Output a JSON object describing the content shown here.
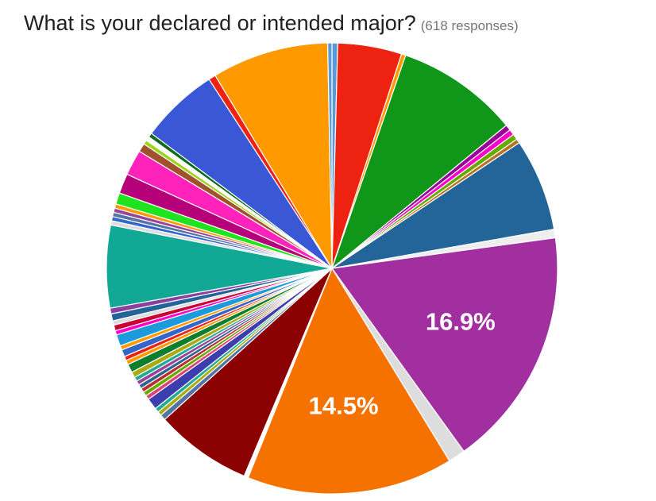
{
  "question": {
    "title": "What is your declared or intended major?",
    "responses_text": "(618 responses)"
  },
  "chart_data": {
    "type": "pie",
    "start_angle_deg": 0,
    "direction": "clockwise",
    "slices": [
      {
        "value": 0.4,
        "color": "#5b9bd5"
      },
      {
        "value": 4.5,
        "color": "#ee2211"
      },
      {
        "value": 0.3,
        "color": "#ff9900"
      },
      {
        "value": 8.6,
        "color": "#109618"
      },
      {
        "value": 0.4,
        "color": "#990099"
      },
      {
        "value": 0.4,
        "color": "#ff00cc"
      },
      {
        "value": 0.4,
        "color": "#66aa00"
      },
      {
        "value": 0.3,
        "color": "#b77322"
      },
      {
        "value": 6.5,
        "color": "#236598"
      },
      {
        "value": 0.6,
        "color": "#eeeeee"
      },
      {
        "value": 16.9,
        "color": "#a12f9f",
        "label": "16.9%"
      },
      {
        "value": 1.2,
        "color": "#dddddd"
      },
      {
        "value": 14.5,
        "color": "#f67200",
        "label": "14.5%"
      },
      {
        "value": 0.3,
        "color": "#ffffff"
      },
      {
        "value": 6.8,
        "color": "#8b0000"
      },
      {
        "value": 0.4,
        "color": "#5574a6"
      },
      {
        "value": 0.3,
        "color": "#aaaa11"
      },
      {
        "value": 0.3,
        "color": "#22aa99"
      },
      {
        "value": 0.8,
        "color": "#3b3eac"
      },
      {
        "value": 0.3,
        "color": "#dd4477"
      },
      {
        "value": 0.3,
        "color": "#66aa00"
      },
      {
        "value": 0.3,
        "color": "#b82e2e"
      },
      {
        "value": 0.3,
        "color": "#316395"
      },
      {
        "value": 0.3,
        "color": "#994499"
      },
      {
        "value": 0.3,
        "color": "#22aa99"
      },
      {
        "value": 0.4,
        "color": "#aaaa11"
      },
      {
        "value": 0.6,
        "color": "#0d7d2f"
      },
      {
        "value": 0.3,
        "color": "#ff9900"
      },
      {
        "value": 0.3,
        "color": "#ee2211"
      },
      {
        "value": 0.5,
        "color": "#3366cc"
      },
      {
        "value": 0.3,
        "color": "#ff9900"
      },
      {
        "value": 0.8,
        "color": "#1b9bdc"
      },
      {
        "value": 0.3,
        "color": "#ff00cc"
      },
      {
        "value": 0.4,
        "color": "#cc0033"
      },
      {
        "value": 0.3,
        "color": "#dddddd"
      },
      {
        "value": 0.5,
        "color": "#236598"
      },
      {
        "value": 0.4,
        "color": "#8b3fa0"
      },
      {
        "value": 5.8,
        "color": "#11a896"
      },
      {
        "value": 0.3,
        "color": "#dddddd"
      },
      {
        "value": 0.3,
        "color": "#3366cc"
      },
      {
        "value": 0.3,
        "color": "#5574a6"
      },
      {
        "value": 0.3,
        "color": "#994499"
      },
      {
        "value": 0.3,
        "color": "#ff9900"
      },
      {
        "value": 0.8,
        "color": "#1ee31e"
      },
      {
        "value": 1.4,
        "color": "#b5007a"
      },
      {
        "value": 1.8,
        "color": "#ff22bb"
      },
      {
        "value": 0.6,
        "color": "#a0522d"
      },
      {
        "value": 0.3,
        "color": "#9dd41e"
      },
      {
        "value": 0.3,
        "color": "#ffffff"
      },
      {
        "value": 0.3,
        "color": "#0f6b1f"
      },
      {
        "value": 5.5,
        "color": "#3a58d6"
      },
      {
        "value": 0.5,
        "color": "#ee2211"
      },
      {
        "value": 8.2,
        "color": "#ff9900"
      },
      {
        "value": 0.3,
        "color": "#5b9bd5"
      }
    ]
  }
}
